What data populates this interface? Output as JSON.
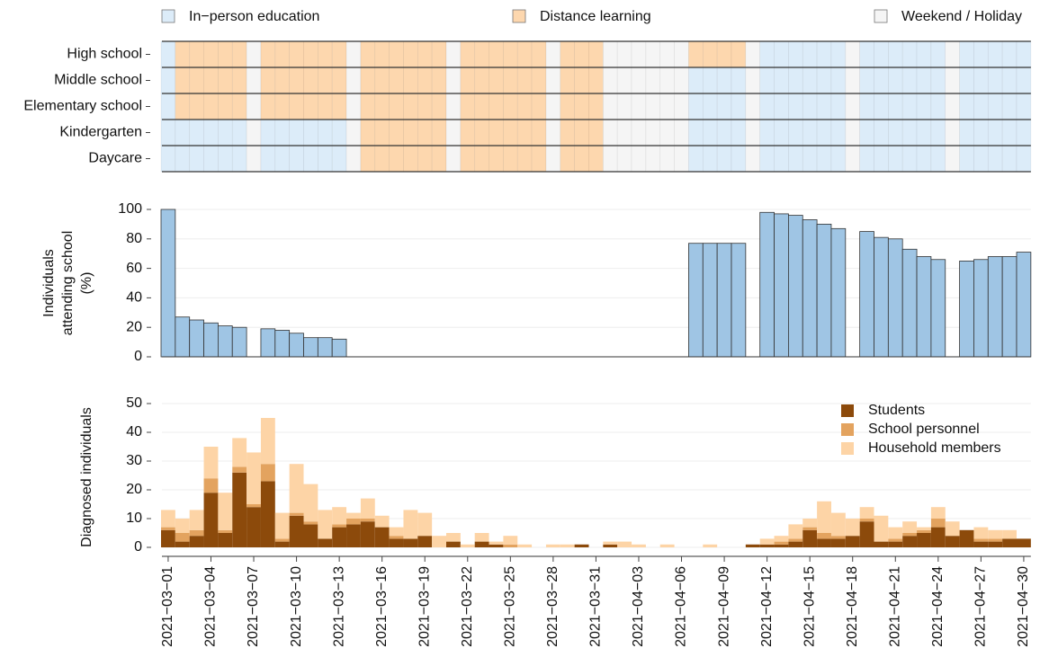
{
  "chart_data": [
    {
      "type": "schedule",
      "rows": [
        "High school",
        "Middle school",
        "Elementary school",
        "Kindergarten",
        "Daycare"
      ],
      "states": [
        {
          "name": "In−person education",
          "color": "#dcecf9"
        },
        {
          "name": "Distance learning",
          "color": "#fdd7ae"
        },
        {
          "name": "Weekend / Holiday",
          "color": "#f5f5f5"
        }
      ],
      "values": [
        [
          0,
          1,
          1,
          1,
          1,
          1,
          2,
          1,
          1,
          1,
          1,
          1,
          1,
          2,
          1,
          1,
          1,
          1,
          1,
          1,
          2,
          1,
          1,
          1,
          1,
          1,
          1,
          2,
          1,
          1,
          1,
          2,
          2,
          2,
          2,
          2,
          2,
          1,
          1,
          1,
          1,
          2,
          0,
          0,
          0,
          0,
          0,
          0,
          2,
          0,
          0,
          0,
          0,
          0,
          0,
          2,
          0,
          0,
          0,
          0,
          0
        ],
        [
          0,
          1,
          1,
          1,
          1,
          1,
          2,
          1,
          1,
          1,
          1,
          1,
          1,
          2,
          1,
          1,
          1,
          1,
          1,
          1,
          2,
          1,
          1,
          1,
          1,
          1,
          1,
          2,
          1,
          1,
          1,
          2,
          2,
          2,
          2,
          2,
          2,
          0,
          0,
          0,
          0,
          2,
          0,
          0,
          0,
          0,
          0,
          0,
          2,
          0,
          0,
          0,
          0,
          0,
          0,
          2,
          0,
          0,
          0,
          0,
          0
        ],
        [
          0,
          1,
          1,
          1,
          1,
          1,
          2,
          1,
          1,
          1,
          1,
          1,
          1,
          2,
          1,
          1,
          1,
          1,
          1,
          1,
          2,
          1,
          1,
          1,
          1,
          1,
          1,
          2,
          1,
          1,
          1,
          2,
          2,
          2,
          2,
          2,
          2,
          0,
          0,
          0,
          0,
          2,
          0,
          0,
          0,
          0,
          0,
          0,
          2,
          0,
          0,
          0,
          0,
          0,
          0,
          2,
          0,
          0,
          0,
          0,
          0
        ],
        [
          0,
          0,
          0,
          0,
          0,
          0,
          2,
          0,
          0,
          0,
          0,
          0,
          0,
          2,
          1,
          1,
          1,
          1,
          1,
          1,
          2,
          1,
          1,
          1,
          1,
          1,
          1,
          2,
          1,
          1,
          1,
          2,
          2,
          2,
          2,
          2,
          2,
          0,
          0,
          0,
          0,
          2,
          0,
          0,
          0,
          0,
          0,
          0,
          2,
          0,
          0,
          0,
          0,
          0,
          0,
          2,
          0,
          0,
          0,
          0,
          0
        ],
        [
          0,
          0,
          0,
          0,
          0,
          0,
          2,
          0,
          0,
          0,
          0,
          0,
          0,
          2,
          1,
          1,
          1,
          1,
          1,
          1,
          2,
          1,
          1,
          1,
          1,
          1,
          1,
          2,
          1,
          1,
          1,
          2,
          2,
          2,
          2,
          2,
          2,
          0,
          0,
          0,
          0,
          2,
          0,
          0,
          0,
          0,
          0,
          0,
          2,
          0,
          0,
          0,
          0,
          0,
          0,
          2,
          0,
          0,
          0,
          0,
          0
        ]
      ]
    },
    {
      "type": "bar",
      "y_label": [
        "Individuals",
        "attending school",
        "(%)"
      ],
      "color": "#9fc5e4",
      "values": [
        100,
        27,
        25,
        23,
        21,
        20,
        null,
        19,
        18,
        16,
        13,
        13,
        12,
        null,
        0,
        0,
        0,
        0,
        0,
        0,
        null,
        0,
        0,
        0,
        0,
        0,
        0,
        null,
        0,
        0,
        0,
        null,
        null,
        null,
        null,
        null,
        null,
        77,
        77,
        77,
        77,
        null,
        98,
        97,
        96,
        93,
        90,
        87,
        null,
        85,
        81,
        80,
        73,
        68,
        66,
        null,
        65,
        66,
        68,
        68,
        71
      ],
      "ylim": [
        0,
        100
      ],
      "yticks": [
        0,
        20,
        40,
        60,
        80,
        100
      ],
      "grid": true
    },
    {
      "type": "stacked_bar",
      "y_label": "Diagnosed individuals",
      "categories": [
        "2021−03−01",
        null,
        null,
        "2021−03−04",
        null,
        null,
        "2021−03−07",
        null,
        null,
        "2021−03−10",
        null,
        null,
        "2021−03−13",
        null,
        null,
        "2021−03−16",
        null,
        null,
        "2021−03−19",
        null,
        null,
        "2021−03−22",
        null,
        null,
        "2021−03−25",
        null,
        null,
        "2021−03−28",
        null,
        null,
        "2021−03−31",
        null,
        null,
        "2021−04−03",
        null,
        null,
        "2021−04−06",
        null,
        null,
        "2021−04−09",
        null,
        null,
        "2021−04−12",
        null,
        null,
        "2021−04−15",
        null,
        null,
        "2021−04−18",
        null,
        null,
        "2021−04−21",
        null,
        null,
        "2021−04−24",
        null,
        null,
        "2021−04−27",
        null,
        null,
        "2021−04−30"
      ],
      "series": [
        {
          "name": "Students",
          "color": "#8c4a0b",
          "values": [
            6,
            2,
            4,
            19,
            5,
            26,
            14,
            23,
            2,
            11,
            8,
            3,
            7,
            8,
            9,
            7,
            3,
            3,
            4,
            0,
            2,
            0,
            2,
            1,
            0,
            0,
            0,
            0,
            0,
            1,
            0,
            1,
            0,
            0,
            0,
            0,
            0,
            0,
            0,
            0,
            0,
            1,
            1,
            1,
            2,
            6,
            3,
            3,
            4,
            9,
            2,
            2,
            4,
            5,
            7,
            4,
            6,
            2,
            2,
            3,
            3
          ]
        },
        {
          "name": "School personnel",
          "color": "#e3a35f",
          "values": [
            1,
            3,
            2,
            5,
            1,
            2,
            1,
            6,
            1,
            1,
            1,
            0,
            1,
            2,
            1,
            0,
            1,
            0,
            0,
            0,
            0,
            0,
            0,
            0,
            1,
            0,
            0,
            0,
            0,
            0,
            0,
            0,
            0,
            0,
            0,
            0,
            0,
            0,
            0,
            0,
            0,
            0,
            0,
            1,
            1,
            1,
            2,
            1,
            0,
            1,
            0,
            1,
            1,
            1,
            3,
            0,
            0,
            1,
            1,
            0,
            0
          ]
        },
        {
          "name": "Household members",
          "color": "#fdd4a6",
          "values": [
            6,
            5,
            7,
            11,
            13,
            10,
            18,
            16,
            9,
            17,
            13,
            10,
            6,
            2,
            7,
            4,
            3,
            10,
            8,
            4,
            3,
            1,
            3,
            1,
            3,
            1,
            0,
            1,
            1,
            0,
            0,
            1,
            2,
            1,
            0,
            1,
            0,
            0,
            1,
            0,
            0,
            0,
            2,
            2,
            5,
            3,
            11,
            8,
            6,
            4,
            9,
            4,
            4,
            1,
            4,
            5,
            0,
            4,
            3,
            3,
            0
          ]
        }
      ],
      "ylim": [
        0,
        50
      ],
      "yticks": [
        0,
        10,
        20,
        30,
        40,
        50
      ],
      "grid": true,
      "legend": "top-right"
    }
  ]
}
